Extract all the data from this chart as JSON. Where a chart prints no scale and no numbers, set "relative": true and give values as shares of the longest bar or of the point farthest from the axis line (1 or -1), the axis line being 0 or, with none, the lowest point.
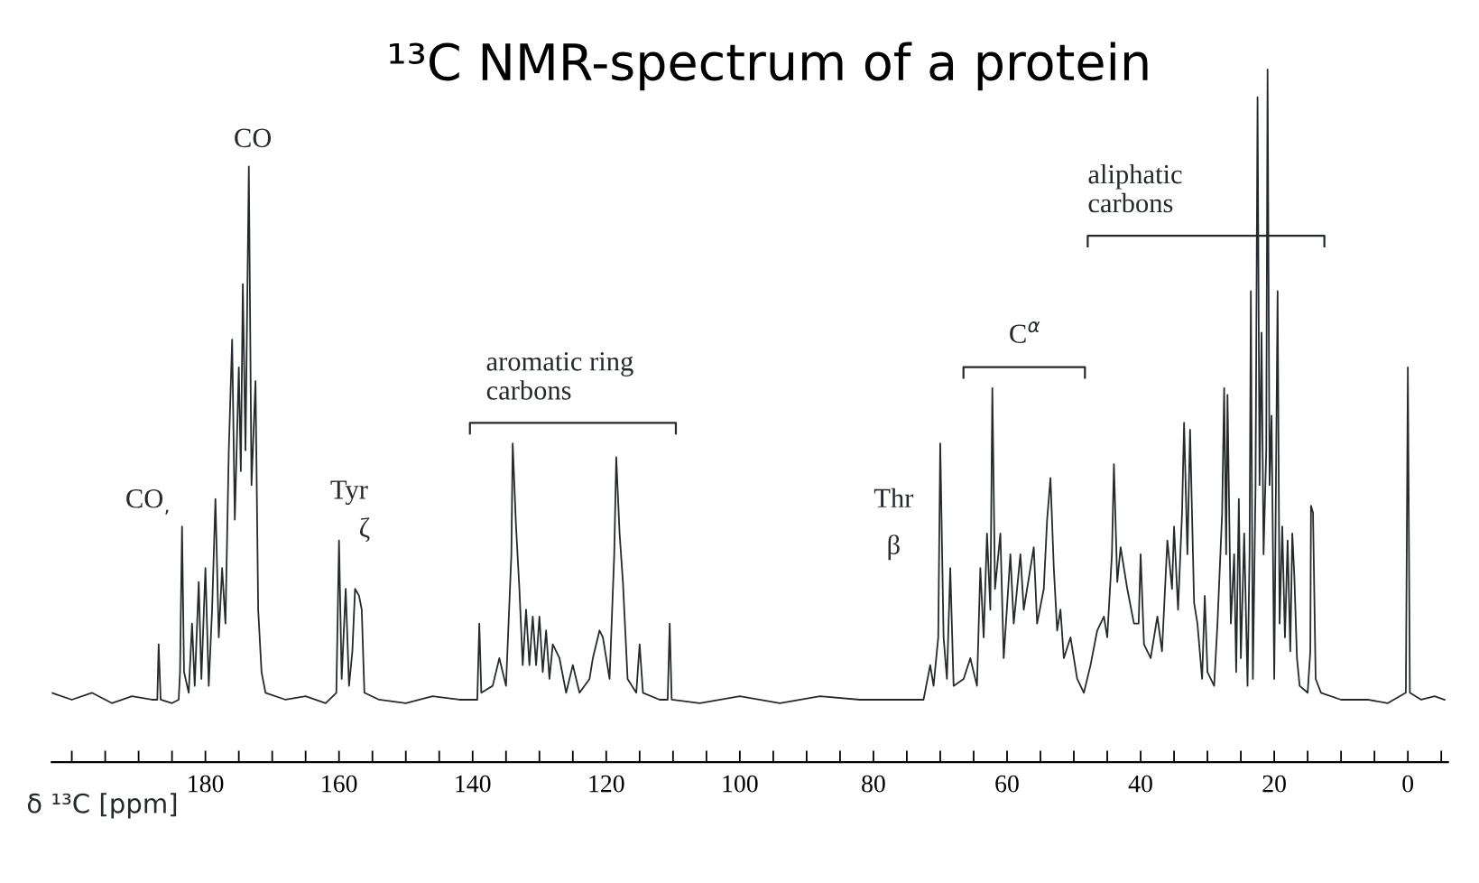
{
  "chart_data": {
    "type": "line",
    "title": "¹³C NMR-spectrum of a protein",
    "xlabel": "δ ¹³C [ppm]",
    "relative": true,
    "grid": false,
    "legend": false,
    "marker": "none",
    "line_style": "solid",
    "xlim": [
      203,
      -6
    ],
    "xticks": [
      {
        "value": 200,
        "label": null
      },
      {
        "value": 195,
        "label": null
      },
      {
        "value": 190,
        "label": null
      },
      {
        "value": 185,
        "label": null
      },
      180,
      {
        "value": 175,
        "label": null
      },
      {
        "value": 170,
        "label": null
      },
      {
        "value": 165,
        "label": null
      },
      160,
      {
        "value": 155,
        "label": null
      },
      {
        "value": 150,
        "label": null
      },
      {
        "value": 145,
        "label": null
      },
      140,
      {
        "value": 135,
        "label": null
      },
      {
        "value": 130,
        "label": null
      },
      {
        "value": 125,
        "label": null
      },
      120,
      {
        "value": 115,
        "label": null
      },
      {
        "value": 110,
        "label": null
      },
      {
        "value": 105,
        "label": null
      },
      100,
      {
        "value": 95,
        "label": null
      },
      {
        "value": 90,
        "label": null
      },
      {
        "value": 85,
        "label": null
      },
      80,
      {
        "value": 75,
        "label": null
      },
      {
        "value": 70,
        "label": null
      },
      {
        "value": 65,
        "label": null
      },
      60,
      {
        "value": 55,
        "label": null
      },
      {
        "value": 50,
        "label": null
      },
      {
        "value": 45,
        "label": null
      },
      40,
      {
        "value": 35,
        "label": null
      },
      {
        "value": 30,
        "label": null
      },
      {
        "value": 25,
        "label": null
      },
      20,
      {
        "value": 15,
        "label": null
      },
      {
        "value": 10,
        "label": null
      },
      {
        "value": 5,
        "label": null
      },
      0,
      {
        "value": -5,
        "label": null
      }
    ],
    "series": [
      {
        "color": "#262a2c",
        "x": [
          203,
          200,
          197,
          194,
          191,
          188,
          187.2,
          187,
          186.7,
          185,
          184,
          183.8,
          183.5,
          183.2,
          182.5,
          182,
          181.6,
          181,
          180.6,
          180,
          179.5,
          179,
          178.5,
          178,
          177.5,
          177,
          176.5,
          176,
          175.6,
          175,
          174.7,
          174.4,
          174,
          173.5,
          173.1,
          172.5,
          172.1,
          171.6,
          171,
          168,
          165,
          162,
          160.4,
          160,
          159.6,
          159,
          158.5,
          158,
          157.6,
          157,
          156.6,
          156.2,
          154,
          150,
          146,
          142,
          139.3,
          139,
          138.7,
          137,
          136,
          135,
          134.2,
          134,
          133.5,
          133,
          132.5,
          132,
          131.5,
          131,
          130.5,
          130,
          129.5,
          129,
          128.5,
          128,
          127,
          126,
          125,
          124,
          122.5,
          122,
          121,
          120.5,
          119.5,
          118.8,
          118.5,
          118,
          117.5,
          116.8,
          115.5,
          115,
          114.5,
          112,
          110.8,
          110.5,
          110.2,
          106,
          100,
          94,
          88,
          82,
          76,
          72.5,
          71.5,
          71,
          70.3,
          70,
          69.5,
          69,
          68.5,
          68,
          66.5,
          65.5,
          64.5,
          64,
          63.5,
          63,
          62.5,
          62.2,
          61.8,
          61,
          60.5,
          59.5,
          59,
          58,
          57.5,
          56.5,
          56,
          55.5,
          54.5,
          54,
          53.5,
          53,
          52.5,
          52,
          51.5,
          50.5,
          49.5,
          48.5,
          47.5,
          46.5,
          45.5,
          45,
          44.3,
          44,
          43.5,
          43,
          42,
          41,
          40.3,
          40,
          39.5,
          38.5,
          37.5,
          36.8,
          36,
          35.3,
          35,
          34.4,
          33.8,
          33.5,
          33,
          32.6,
          32,
          31.5,
          30.8,
          30.4,
          30,
          29,
          28.5,
          27.8,
          27.5,
          27.2,
          27,
          26.5,
          26,
          25.7,
          25.3,
          25,
          24.5,
          24,
          23.7,
          23.5,
          23.2,
          22.8,
          22.5,
          22.2,
          21.9,
          21.6,
          21.2,
          21,
          20.7,
          20.4,
          20,
          19.5,
          19.2,
          18.8,
          18.4,
          18,
          17.6,
          17.3,
          17,
          16.6,
          16.2,
          15,
          14.6,
          14.5,
          14.2,
          13.8,
          13,
          10,
          6,
          3,
          0.3,
          0,
          -0.3,
          -2,
          -4,
          -5.5
        ],
        "values": [
          0.1,
          0.09,
          0.1,
          0.085,
          0.095,
          0.09,
          0.09,
          0.17,
          0.09,
          0.085,
          0.09,
          0.13,
          0.34,
          0.13,
          0.1,
          0.2,
          0.11,
          0.26,
          0.12,
          0.28,
          0.11,
          0.22,
          0.38,
          0.18,
          0.28,
          0.2,
          0.45,
          0.61,
          0.35,
          0.57,
          0.42,
          0.69,
          0.45,
          0.86,
          0.4,
          0.55,
          0.22,
          0.13,
          0.1,
          0.09,
          0.095,
          0.085,
          0.1,
          0.32,
          0.12,
          0.25,
          0.11,
          0.16,
          0.25,
          0.24,
          0.22,
          0.1,
          0.09,
          0.085,
          0.095,
          0.09,
          0.09,
          0.2,
          0.1,
          0.11,
          0.15,
          0.11,
          0.3,
          0.46,
          0.34,
          0.25,
          0.14,
          0.22,
          0.14,
          0.21,
          0.14,
          0.21,
          0.13,
          0.19,
          0.12,
          0.17,
          0.15,
          0.1,
          0.14,
          0.1,
          0.12,
          0.15,
          0.19,
          0.18,
          0.12,
          0.3,
          0.44,
          0.33,
          0.26,
          0.12,
          0.1,
          0.17,
          0.1,
          0.09,
          0.09,
          0.2,
          0.09,
          0.085,
          0.095,
          0.085,
          0.095,
          0.09,
          0.09,
          0.09,
          0.14,
          0.11,
          0.18,
          0.46,
          0.18,
          0.12,
          0.28,
          0.11,
          0.12,
          0.15,
          0.11,
          0.28,
          0.18,
          0.33,
          0.22,
          0.54,
          0.25,
          0.33,
          0.15,
          0.3,
          0.2,
          0.3,
          0.22,
          0.28,
          0.31,
          0.2,
          0.25,
          0.35,
          0.41,
          0.28,
          0.19,
          0.22,
          0.15,
          0.18,
          0.12,
          0.1,
          0.14,
          0.19,
          0.21,
          0.18,
          0.3,
          0.43,
          0.26,
          0.31,
          0.25,
          0.2,
          0.2,
          0.3,
          0.17,
          0.15,
          0.21,
          0.16,
          0.32,
          0.25,
          0.34,
          0.22,
          0.36,
          0.49,
          0.3,
          0.48,
          0.23,
          0.2,
          0.12,
          0.24,
          0.13,
          0.11,
          0.2,
          0.36,
          0.54,
          0.3,
          0.53,
          0.2,
          0.3,
          0.13,
          0.38,
          0.15,
          0.33,
          0.11,
          0.3,
          0.68,
          0.12,
          0.4,
          0.96,
          0.4,
          0.62,
          0.3,
          0.45,
          1.0,
          0.4,
          0.5,
          0.12,
          0.68,
          0.2,
          0.34,
          0.18,
          0.32,
          0.16,
          0.33,
          0.27,
          0.15,
          0.11,
          0.1,
          0.16,
          0.37,
          0.36,
          0.12,
          0.1,
          0.09,
          0.09,
          0.085,
          0.1,
          0.57,
          0.1,
          0.09,
          0.095,
          0.09
        ]
      }
    ],
    "annotations": [
      "CO",
      "CO$_{,}$",
      "Tyr",
      "ζ",
      "Thr",
      "β",
      "aromatic ring\ncarbons",
      "C$^{α}$",
      "aliphatic\ncarbons"
    ]
  }
}
